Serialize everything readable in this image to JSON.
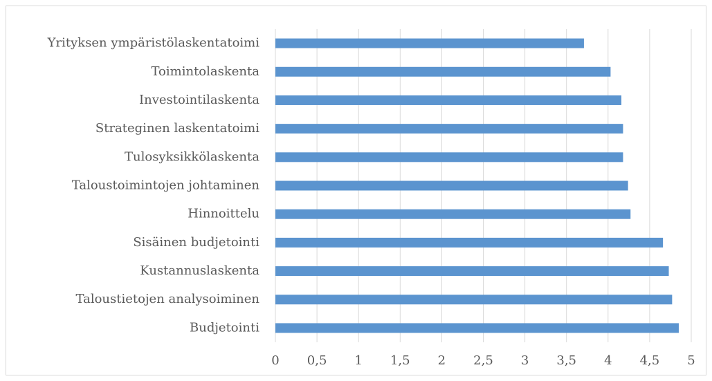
{
  "chart_data": {
    "type": "bar",
    "orientation": "horizontal",
    "categories": [
      "Yrityksen ympäristölaskentatoimi",
      "Toimintolaskenta",
      "Investointilaskenta",
      "Strateginen laskentatoimi",
      "Tulosyksikkölaskenta",
      "Taloustoimintojen johtaminen",
      "Hinnoittelu",
      "Sisäinen budjetointi",
      "Kustannuslaskenta",
      "Taloustietojen analysoiminen",
      "Budjetointi"
    ],
    "values": [
      3.71,
      4.03,
      4.16,
      4.18,
      4.18,
      4.24,
      4.27,
      4.66,
      4.73,
      4.77,
      4.85
    ],
    "color": "#5b94cf",
    "xlim": [
      0,
      5
    ],
    "xticks": [
      0,
      {
        "value": 0.5,
        "label": "0,5"
      },
      1,
      {
        "value": 1.5,
        "label": "1,5"
      },
      2,
      {
        "value": 2.5,
        "label": "2,5"
      },
      3,
      {
        "value": 3.5,
        "label": "3,5"
      },
      4,
      {
        "value": 4.5,
        "label": "4,5"
      },
      5
    ],
    "grid": true
  }
}
